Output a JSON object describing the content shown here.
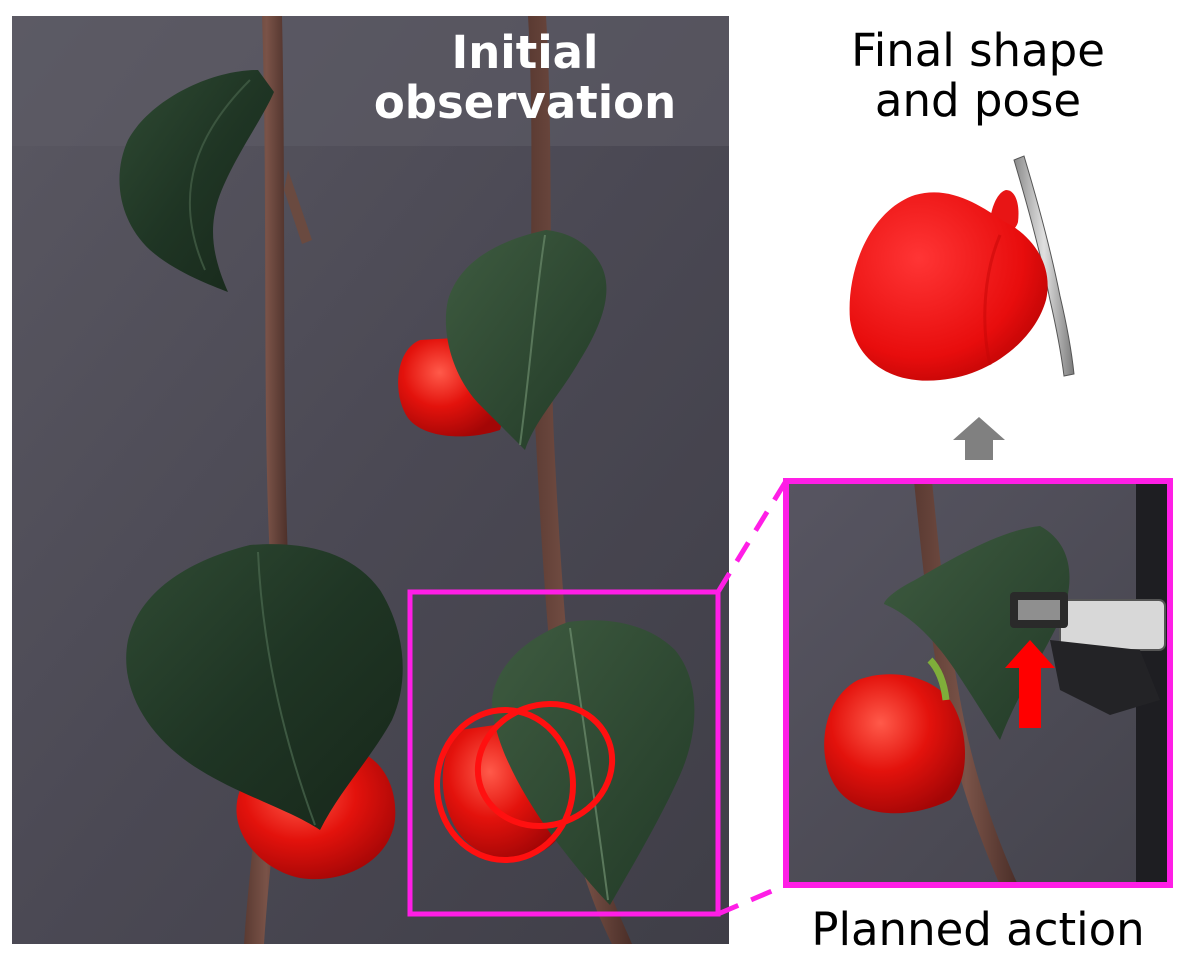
{
  "labels": {
    "initial_line1": "Initial",
    "initial_line2": "observation",
    "final_line1": "Final shape",
    "final_line2": "and pose",
    "planned": "Planned action"
  },
  "colors": {
    "highlight_magenta": "#ff1ee6",
    "pepper_red": "#e50d0d",
    "arrow_gray": "#808080",
    "action_arrow_red": "#ff0000",
    "backdrop": "#4d4b56"
  },
  "icons": {
    "up_arrow": "gray-up-arrow-icon",
    "action_arrow": "red-push-arrow-icon"
  }
}
